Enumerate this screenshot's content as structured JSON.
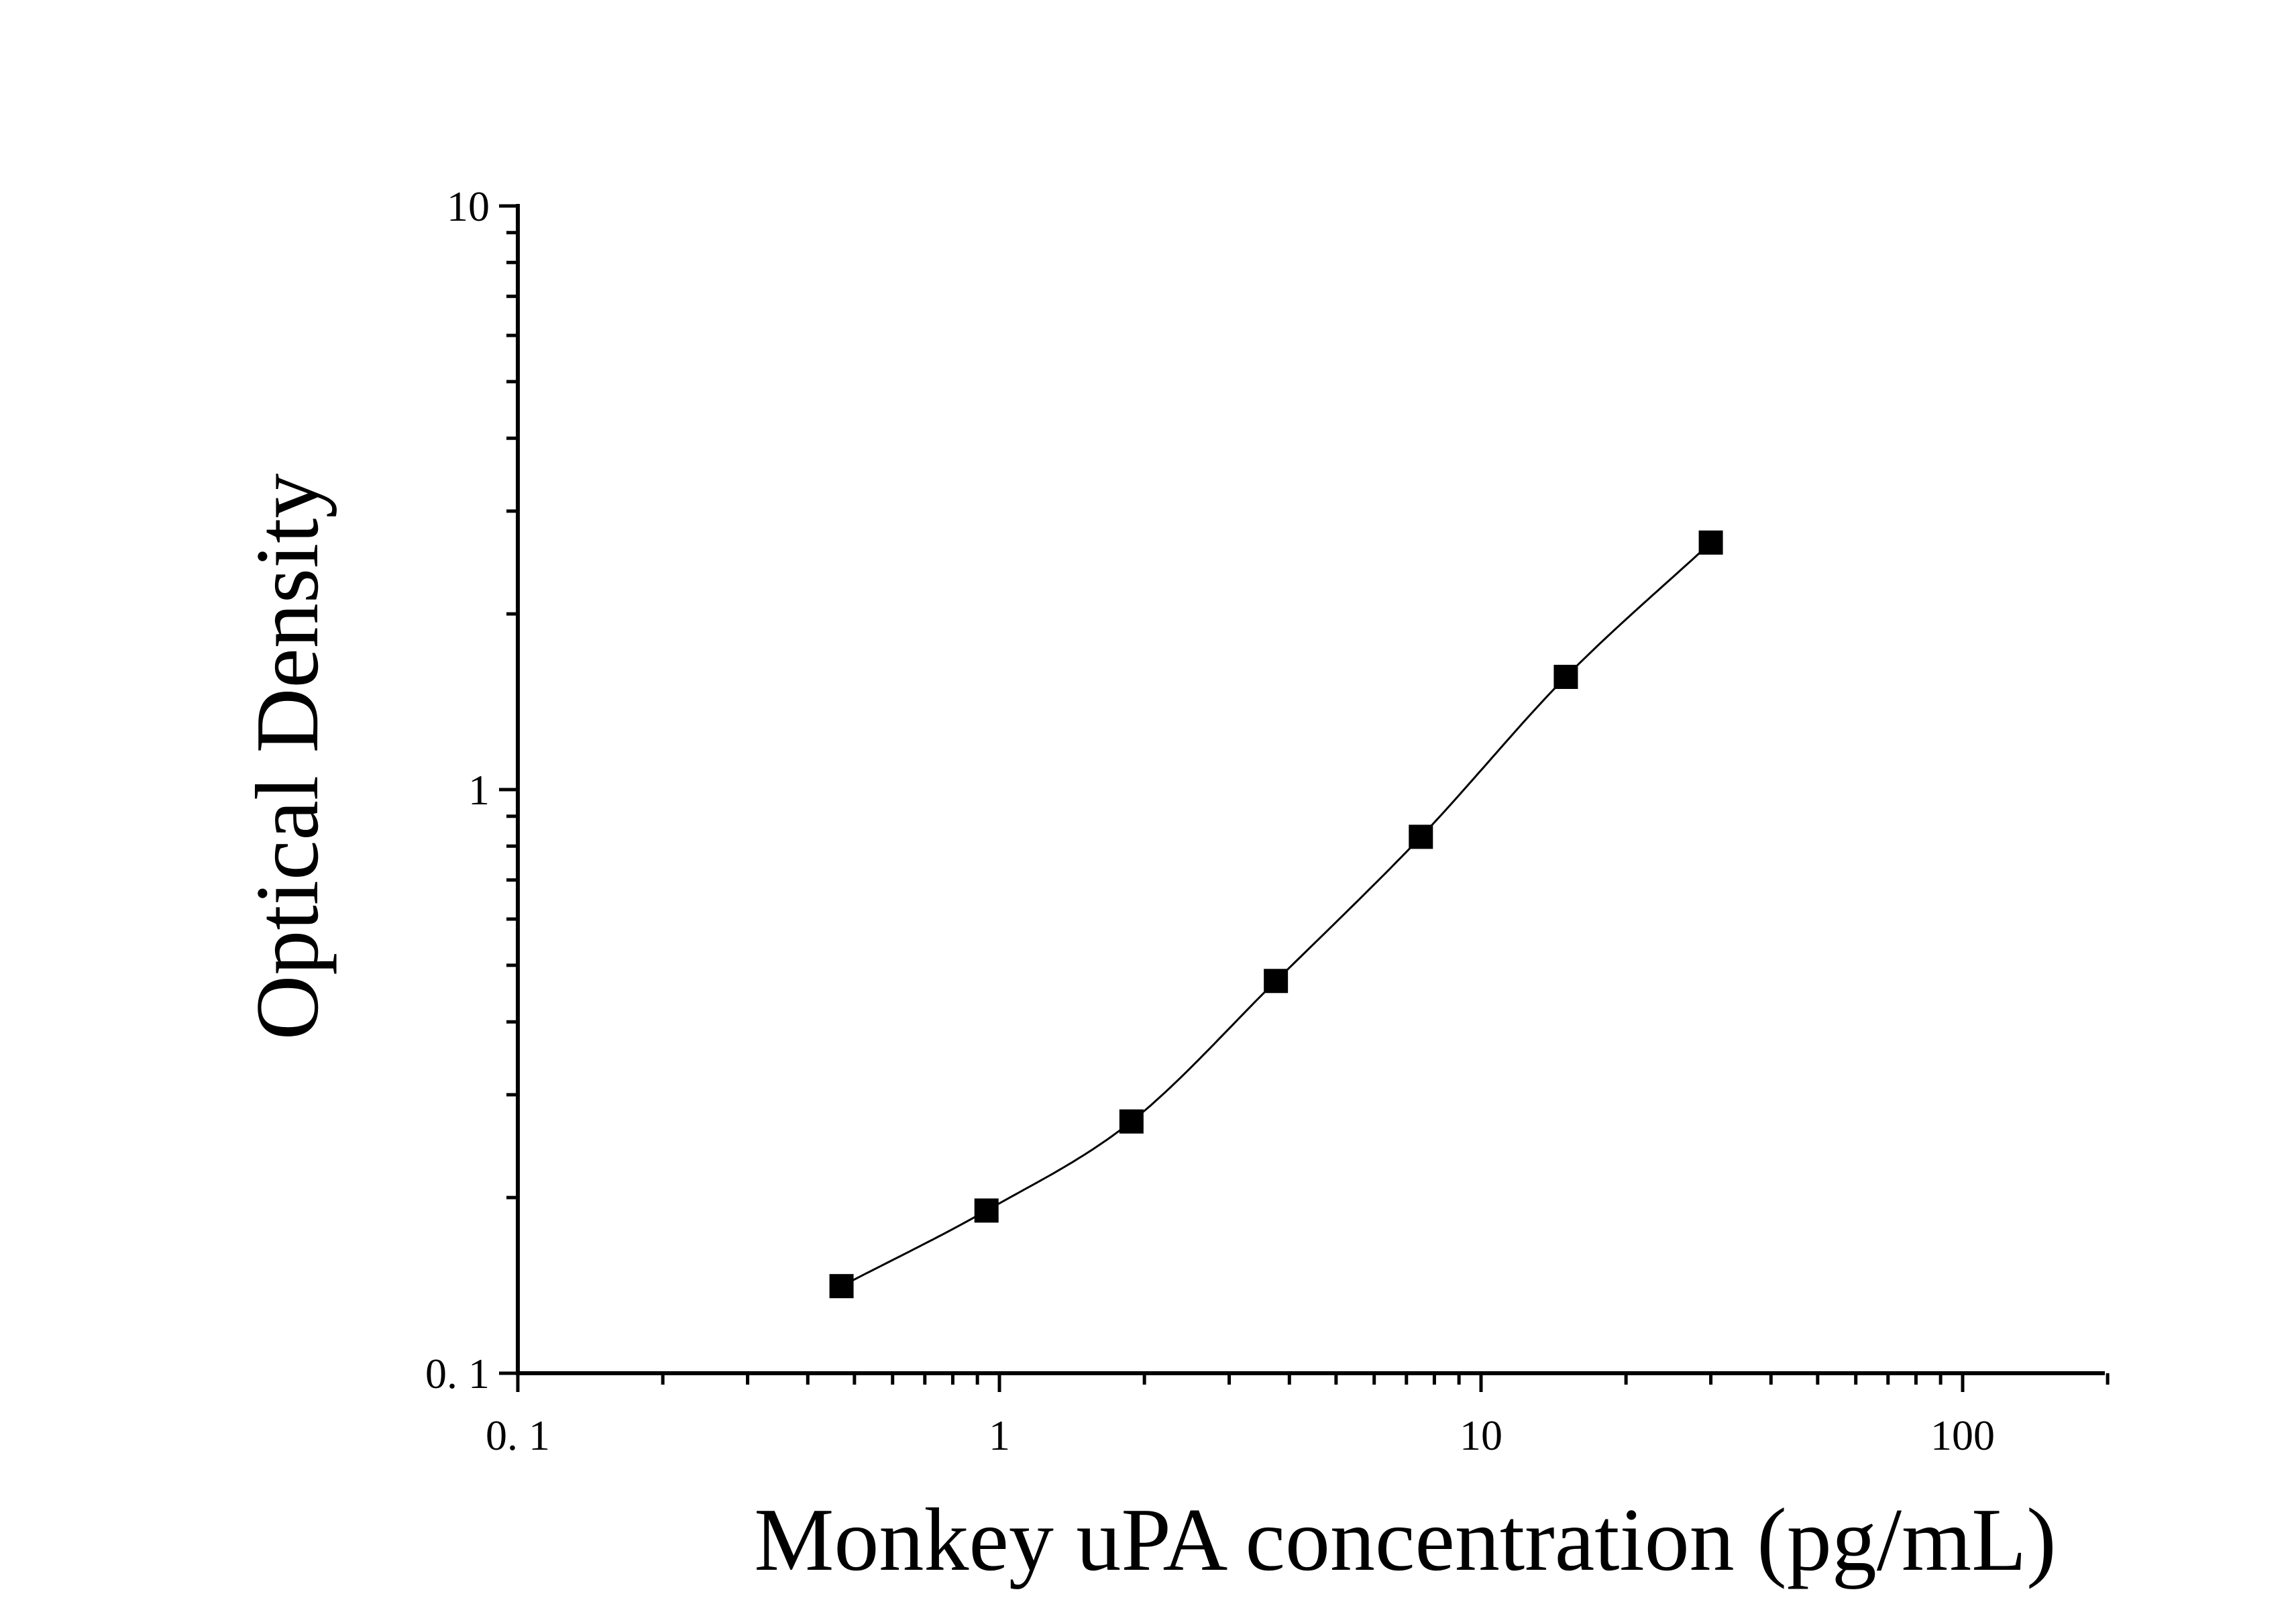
{
  "chart_data": {
    "type": "scatter",
    "xlabel": "Monkey uPA concentration (pg/mL)",
    "ylabel": "Optical Density",
    "xscale": "log",
    "yscale": "log",
    "xlim": [
      0.1,
      200
    ],
    "ylim": [
      0.1,
      10
    ],
    "x_ticks": [
      0.1,
      1,
      10,
      100
    ],
    "x_tick_labels": [
      "0. 1",
      "1",
      "10",
      "100"
    ],
    "y_ticks": [
      0.1,
      1,
      10
    ],
    "y_tick_labels": [
      "0. 1",
      "1",
      "10"
    ],
    "grid": false,
    "legend": "none",
    "marker": "square",
    "marker_color": "#000000",
    "line_color": "#000000",
    "series": [
      {
        "x": [
          0.47,
          0.94,
          1.88,
          3.75,
          7.5,
          15,
          30
        ],
        "y": [
          0.141,
          0.19,
          0.27,
          0.47,
          0.83,
          1.56,
          2.65
        ]
      }
    ]
  }
}
